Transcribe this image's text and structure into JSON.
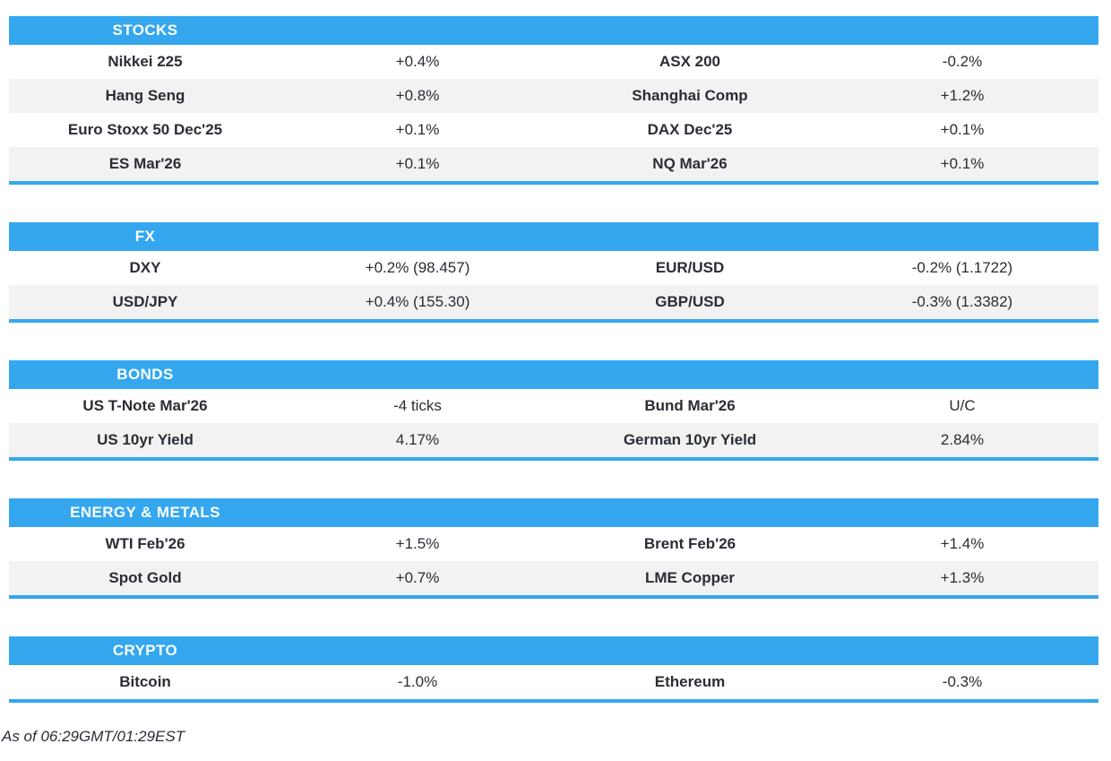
{
  "theme": {
    "accent_blue": "#34a7ef",
    "stripe_gray": "#f2f2f2",
    "text_dark": "#2b2d35",
    "header_text": "#ffffff"
  },
  "chart_data": {
    "type": "table",
    "layout": "four columns per row: instrument / change, instrument / change; section title bar in blue; zebra striping; blue rule under each section",
    "sections": [
      {
        "title": "STOCKS",
        "rows": [
          [
            "Nikkei 225",
            "+0.4%",
            "ASX 200",
            "-0.2%"
          ],
          [
            "Hang Seng",
            "+0.8%",
            "Shanghai Comp",
            "+1.2%"
          ],
          [
            "Euro Stoxx 50 Dec'25",
            "+0.1%",
            "DAX Dec'25",
            "+0.1%"
          ],
          [
            "ES Mar'26",
            "+0.1%",
            "NQ Mar'26",
            "+0.1%"
          ]
        ]
      },
      {
        "title": "FX",
        "rows": [
          [
            "DXY",
            "+0.2% (98.457)",
            "EUR/USD",
            "-0.2% (1.1722)"
          ],
          [
            "USD/JPY",
            "+0.4% (155.30)",
            "GBP/USD",
            "-0.3% (1.3382)"
          ]
        ]
      },
      {
        "title": "BONDS",
        "rows": [
          [
            "US T-Note Mar'26",
            "-4 ticks",
            "Bund Mar'26",
            "U/C"
          ],
          [
            "US 10yr Yield",
            "4.17%",
            "German 10yr Yield",
            "2.84%"
          ]
        ]
      },
      {
        "title": "ENERGY & METALS",
        "rows": [
          [
            "WTI Feb'26",
            "+1.5%",
            "Brent Feb'26",
            "+1.4%"
          ],
          [
            "Spot Gold",
            "+0.7%",
            "LME Copper",
            "+1.3%"
          ]
        ]
      },
      {
        "title": "CRYPTO",
        "rows": [
          [
            "Bitcoin",
            "-1.0%",
            "Ethereum",
            "-0.3%"
          ]
        ]
      }
    ]
  },
  "footer": {
    "as_of": "As of 06:29GMT/01:29EST"
  }
}
